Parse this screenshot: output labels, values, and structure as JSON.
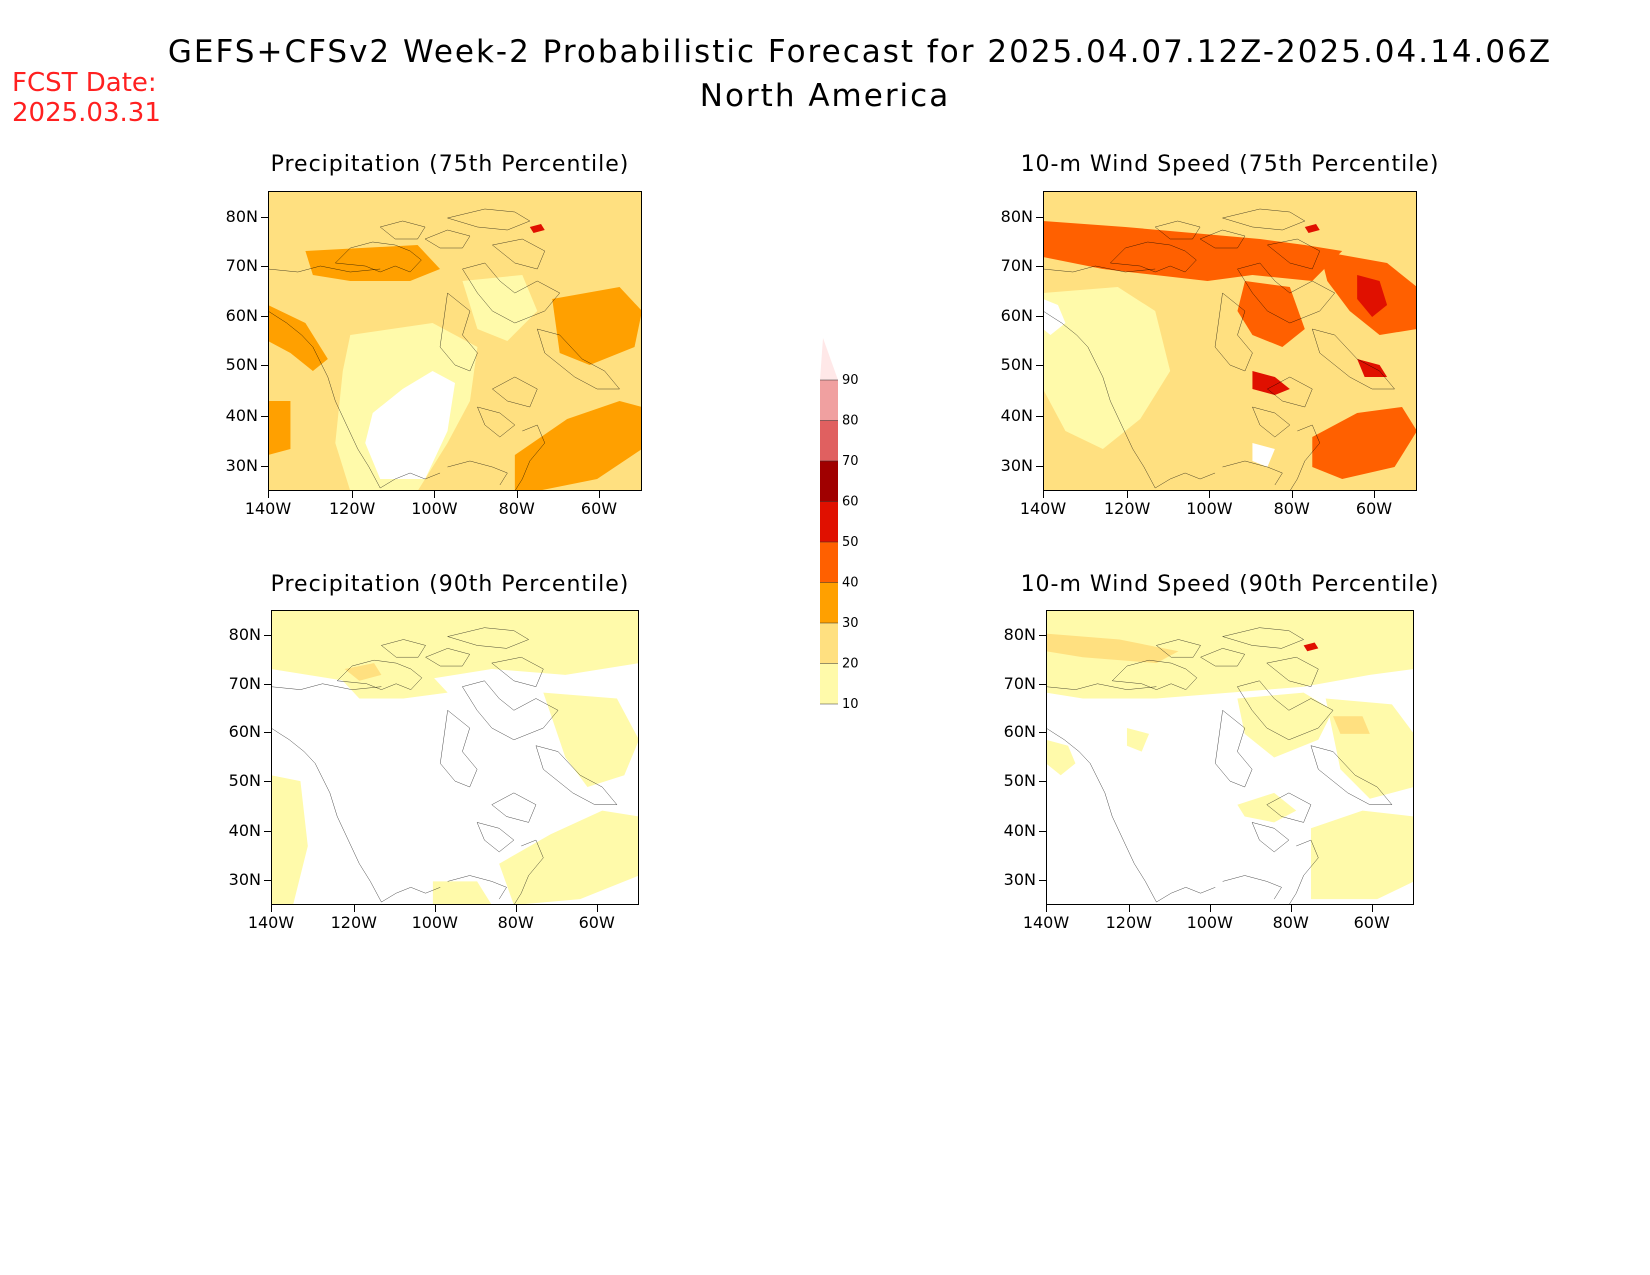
{
  "header": {
    "title": "GEFS+CFSv2 Week-2 Probabilistic Forecast for 2025.04.07.12Z-2025.04.14.06Z",
    "subtitle": "North America",
    "fcst_label": "FCST Date:",
    "fcst_date": "2025.03.31"
  },
  "axes": {
    "lat_labels": [
      "80N",
      "70N",
      "60N",
      "50N",
      "40N",
      "30N"
    ],
    "lon_labels": [
      "140W",
      "120W",
      "100W",
      "80W",
      "60W"
    ]
  },
  "panels": [
    {
      "title": "Precipitation (75th Percentile)",
      "variant": "p75",
      "intensity": "moderate"
    },
    {
      "title": "10-m Wind Speed (75th Percentile)",
      "variant": "w75",
      "intensity": "high"
    },
    {
      "title": "Precipitation (90th Percentile)",
      "variant": "p90",
      "intensity": "low"
    },
    {
      "title": "10-m Wind Speed (90th Percentile)",
      "variant": "w90",
      "intensity": "low"
    }
  ],
  "colorbar": {
    "levels": [
      "10",
      "20",
      "30",
      "40",
      "50",
      "60",
      "70",
      "80",
      "90"
    ],
    "colors": [
      "#fffaaa",
      "#ffe080",
      "#ffa000",
      "#ff6000",
      "#e01000",
      "#a00000",
      "#e06060",
      "#f0a0a0",
      "#ffe8e8"
    ]
  }
}
